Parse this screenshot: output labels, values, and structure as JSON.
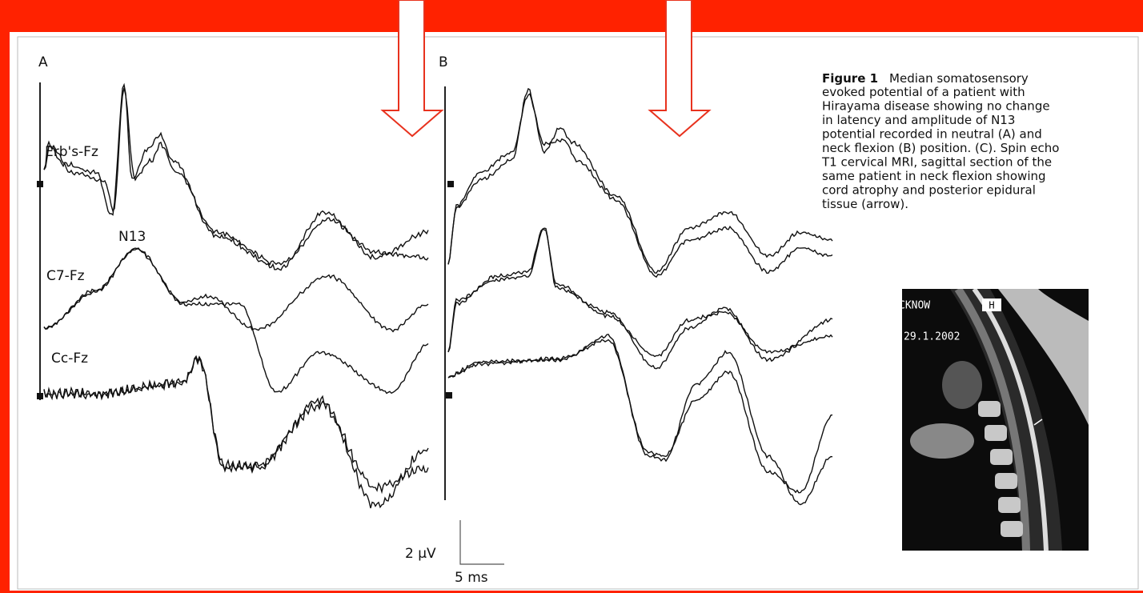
{
  "figure": {
    "panels": [
      {
        "label": "A"
      },
      {
        "label": "B"
      }
    ],
    "trace_labels": [
      "Erb's-Fz",
      "C7-Fz",
      "Cc-Fz"
    ],
    "annotation": "N13",
    "scale_bar": {
      "amplitude": "2 µV",
      "time": "5 ms"
    },
    "caption": {
      "label": "Figure 1",
      "lines": [
        "Median somatosensory",
        "evoked potential of a patient with",
        "Hirayama disease showing no change",
        "in latency and amplitude of N13",
        "potential recorded in neutral (A) and",
        "neck flexion (B) position. (C). Spin echo",
        "T1 cervical MRI, sagittal section of the",
        "same patient in neck flexion showing",
        "cord atrophy and posterior epidural",
        "tissue (arrow)."
      ]
    },
    "mri": {
      "corner_text": "CKNOW",
      "orientation": "H",
      "date": "29.1.2002"
    }
  }
}
